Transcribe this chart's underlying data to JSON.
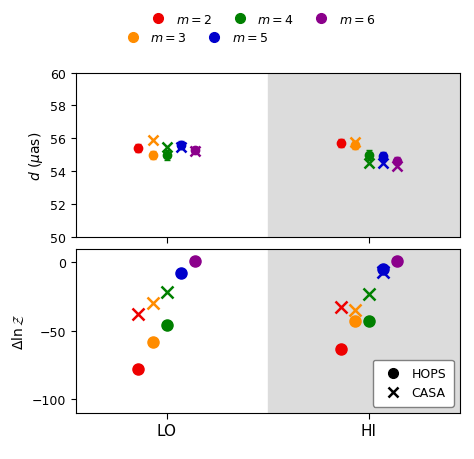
{
  "colors": {
    "m2": "#EE0000",
    "m3": "#FF8C00",
    "m4": "#008000",
    "m5": "#0000CC",
    "m6": "#8B008B"
  },
  "top_panel": {
    "ylim": [
      50,
      60
    ],
    "yticks": [
      50,
      52,
      54,
      56,
      58,
      60
    ],
    "ylabel": "$d$ ($\\mu$as)",
    "lo_hops": {
      "m2": {
        "val": 55.4,
        "err_lo": 0.25,
        "err_hi": 0.25
      },
      "m3": {
        "val": 55.0,
        "err_lo": 0.25,
        "err_hi": 0.25
      },
      "m4": {
        "val": 55.0,
        "err_lo": 0.3,
        "err_hi": 0.3
      },
      "m5": {
        "val": 55.6,
        "err_lo": 0.25,
        "err_hi": 0.25
      },
      "m6": {
        "val": 55.3,
        "err_lo": 0.2,
        "err_hi": 0.2
      }
    },
    "lo_casa": {
      "m2": null,
      "m3": {
        "val": 55.9
      },
      "m4": {
        "val": 55.5
      },
      "m5": {
        "val": 55.5
      },
      "m6": {
        "val": 55.25
      }
    },
    "hi_hops": {
      "m2": {
        "val": 55.7,
        "err_lo": 0.25,
        "err_hi": 0.25
      },
      "m3": {
        "val": 55.6,
        "err_lo": 0.25,
        "err_hi": 0.25
      },
      "m4": {
        "val": 55.0,
        "err_lo": 0.3,
        "err_hi": 0.3
      },
      "m5": {
        "val": 54.9,
        "err_lo": 0.25,
        "err_hi": 0.25
      },
      "m6": {
        "val": 54.65,
        "err_lo": 0.2,
        "err_hi": 0.2
      }
    },
    "hi_casa": {
      "m2": null,
      "m3": {
        "val": 55.75
      },
      "m4": {
        "val": 54.5
      },
      "m5": {
        "val": 54.5
      },
      "m6": {
        "val": 54.3
      }
    }
  },
  "bottom_panel": {
    "ylim": [
      -110,
      10
    ],
    "yticks": [
      -100,
      -50,
      0
    ],
    "ylabel": "$\\Delta \\ln \\mathcal{Z}$",
    "lo_hops": {
      "m2": -78,
      "m3": -58,
      "m4": -46,
      "m5": -8,
      "m6": 1
    },
    "lo_casa": {
      "m2": -38,
      "m3": -30,
      "m4": -22,
      "m5": null,
      "m6": null
    },
    "hi_hops": {
      "m2": -63,
      "m3": -43,
      "m4": -43,
      "m5": -5,
      "m6": 1
    },
    "hi_casa": {
      "m2": -33,
      "m3": -35,
      "m4": -23,
      "m5": -7,
      "m6": null
    }
  },
  "background_color": "#DCDCDC",
  "lo_x": 1.0,
  "hi_x": 2.0,
  "offsets": [
    -0.14,
    -0.07,
    0.0,
    0.07,
    0.14
  ],
  "xlim": [
    0.55,
    2.45
  ]
}
